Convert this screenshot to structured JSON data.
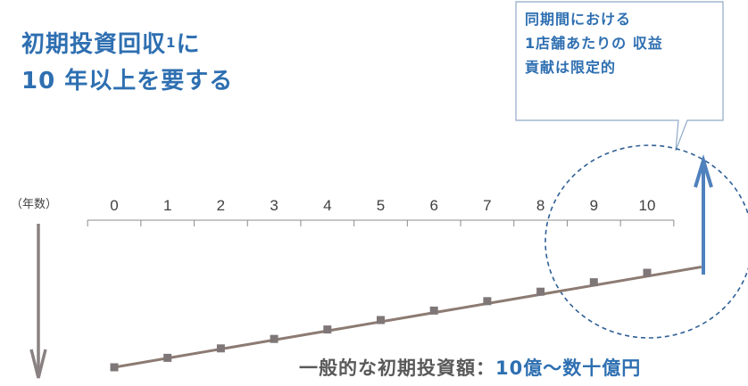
{
  "headline": {
    "line1_before_sup": "初期投資回収",
    "line1_sup": "1",
    "line1_after_sup": "に",
    "line2": "10 年以上を要する"
  },
  "callout": {
    "lines": [
      "同期間における",
      "1店舗あたりの 収益",
      "貢献は限定的"
    ]
  },
  "caption": {
    "prefix": "一般的な初期投資額：",
    "highlight": "10億～数十億円"
  },
  "colors": {
    "accent_blue": "#2e6fb1",
    "line_brown": "#8c7b72",
    "marker_gray": "#7f7777",
    "axis_gray": "#8c8c8c",
    "caption_gray": "#595959",
    "callout_border": "#8fa9c7",
    "arrow_blue": "#4f81bd"
  },
  "chart_data": {
    "type": "line",
    "axis_unit_label": "（年数）",
    "x": [
      0,
      1,
      2,
      3,
      4,
      5,
      6,
      7,
      8,
      9,
      10
    ],
    "tick_labels": [
      "0",
      "1",
      "2",
      "3",
      "4",
      "5",
      "6",
      "7",
      "8",
      "9",
      "10"
    ],
    "values": [
      -10,
      -9,
      -8,
      -7,
      -6,
      -5,
      -4,
      -3,
      -2,
      -1,
      0
    ],
    "line_extends_to_x": 11,
    "line_extends_to_value": 0.6,
    "ylim": [
      -10.5,
      0.6
    ],
    "highlight_region_years": [
      8,
      10
    ],
    "down_arrow_meaning": "investment (negative)",
    "up_arrow_meaning": "recovery"
  }
}
